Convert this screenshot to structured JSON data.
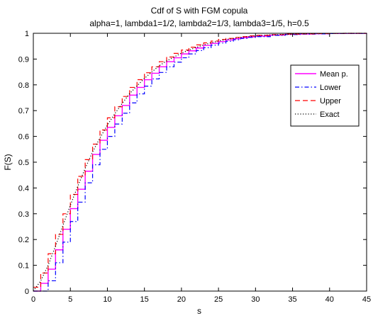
{
  "chart_data": {
    "type": "line",
    "title": "Cdf of S with FGM copula",
    "subtitle": "alpha=1, lambda1=1/2, lambda2=1/3, lambda3=1/5, h=0.5",
    "xlabel": "s",
    "ylabel": "F(S)",
    "xlim": [
      0,
      45
    ],
    "ylim": [
      0,
      1
    ],
    "xticks": [
      "0",
      "5",
      "10",
      "15",
      "20",
      "25",
      "30",
      "35",
      "40",
      "45"
    ],
    "yticks": [
      "0",
      "0.1",
      "0.2",
      "0.3",
      "0.4",
      "0.5",
      "0.6",
      "0.7",
      "0.8",
      "0.9",
      "1"
    ],
    "grid": false,
    "legend_position": "top-right",
    "series": [
      {
        "name": "Mean p.",
        "color": "#ff00ff",
        "style": "solid",
        "step": true,
        "x": [
          0,
          1,
          2,
          3,
          4,
          5,
          6,
          7,
          8,
          9,
          10,
          11,
          12,
          13,
          14,
          15,
          16,
          17,
          18,
          19,
          20,
          21,
          22,
          23,
          24,
          25,
          26,
          27,
          28,
          29,
          30,
          32,
          34,
          36,
          38,
          40,
          42,
          45
        ],
        "y": [
          0.0,
          0.03,
          0.085,
          0.16,
          0.24,
          0.32,
          0.395,
          0.465,
          0.53,
          0.585,
          0.635,
          0.68,
          0.72,
          0.76,
          0.79,
          0.82,
          0.845,
          0.87,
          0.89,
          0.905,
          0.92,
          0.932,
          0.943,
          0.953,
          0.961,
          0.968,
          0.974,
          0.979,
          0.983,
          0.986,
          0.989,
          0.993,
          0.996,
          0.997,
          0.998,
          0.999,
          0.9995,
          1.0
        ]
      },
      {
        "name": "Lower",
        "color": "#0000ff",
        "style": "dashdot",
        "step": true,
        "x": [
          0,
          1,
          2,
          3,
          4,
          5,
          6,
          7,
          8,
          9,
          10,
          11,
          12,
          13,
          14,
          15,
          16,
          17,
          18,
          19,
          20,
          21,
          22,
          23,
          24,
          25,
          26,
          27,
          28,
          29,
          30,
          32,
          34,
          36,
          38,
          40,
          42,
          45
        ],
        "y": [
          0.0,
          0.0,
          0.04,
          0.11,
          0.19,
          0.27,
          0.345,
          0.42,
          0.49,
          0.55,
          0.6,
          0.648,
          0.69,
          0.73,
          0.765,
          0.795,
          0.823,
          0.848,
          0.87,
          0.888,
          0.905,
          0.92,
          0.933,
          0.944,
          0.954,
          0.962,
          0.969,
          0.975,
          0.98,
          0.984,
          0.987,
          0.992,
          0.995,
          0.997,
          0.998,
          0.999,
          0.9995,
          1.0
        ]
      },
      {
        "name": "Upper",
        "color": "#ff0000",
        "style": "dashed",
        "step": true,
        "x": [
          0,
          1,
          2,
          3,
          4,
          5,
          6,
          7,
          8,
          9,
          10,
          11,
          12,
          13,
          14,
          15,
          16,
          17,
          18,
          19,
          20,
          21,
          22,
          23,
          24,
          25,
          26,
          27,
          28,
          29,
          30,
          32,
          34,
          36,
          38,
          40,
          42,
          45
        ],
        "y": [
          0.015,
          0.07,
          0.145,
          0.22,
          0.3,
          0.375,
          0.445,
          0.51,
          0.57,
          0.625,
          0.672,
          0.715,
          0.755,
          0.79,
          0.82,
          0.847,
          0.87,
          0.89,
          0.908,
          0.922,
          0.935,
          0.946,
          0.955,
          0.963,
          0.97,
          0.976,
          0.98,
          0.984,
          0.987,
          0.99,
          0.992,
          0.995,
          0.997,
          0.998,
          0.999,
          0.9995,
          1.0,
          1.0
        ]
      },
      {
        "name": "Exact",
        "color": "#000000",
        "style": "dotted",
        "step": false,
        "x": [
          0,
          1,
          2,
          3,
          4,
          5,
          6,
          7,
          8,
          9,
          10,
          11,
          12,
          13,
          14,
          15,
          16,
          17,
          18,
          19,
          20,
          21,
          22,
          23,
          24,
          25,
          26,
          27,
          28,
          29,
          30,
          32,
          34,
          36,
          38,
          40,
          42,
          45
        ],
        "y": [
          0.0,
          0.04,
          0.1,
          0.175,
          0.255,
          0.333,
          0.407,
          0.476,
          0.54,
          0.594,
          0.644,
          0.688,
          0.728,
          0.766,
          0.796,
          0.825,
          0.85,
          0.874,
          0.893,
          0.908,
          0.923,
          0.935,
          0.945,
          0.955,
          0.963,
          0.97,
          0.976,
          0.98,
          0.984,
          0.987,
          0.99,
          0.994,
          0.996,
          0.998,
          0.999,
          0.9995,
          1.0,
          1.0
        ]
      }
    ]
  }
}
